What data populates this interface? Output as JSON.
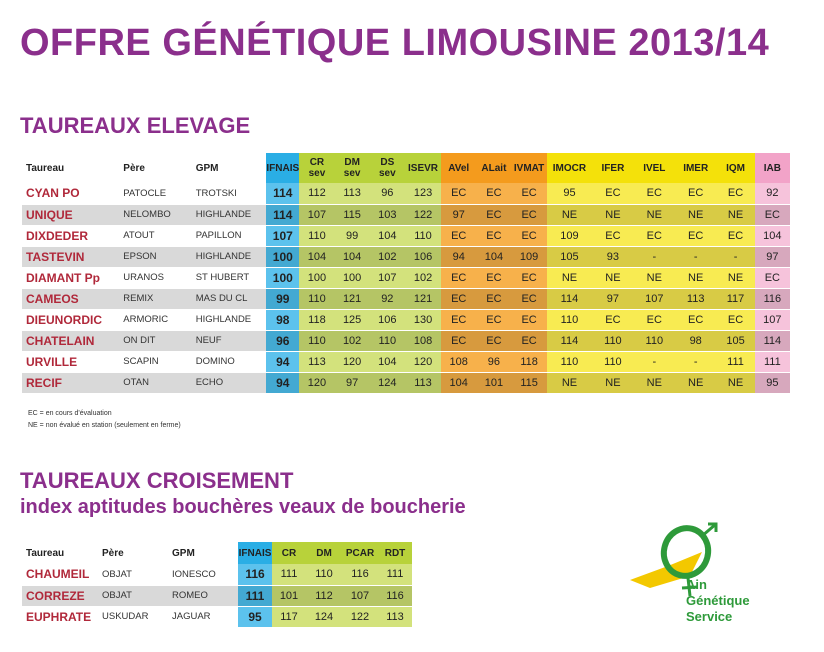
{
  "title": "OFFRE GÉNÉTIQUE LIMOUSINE 2013/14",
  "elevage": {
    "heading": "TAUREAUX ELEVAGE",
    "headers": [
      "Taureau",
      "Père",
      "GPM",
      "IFNAIS",
      "CR sev",
      "DM sev",
      "DS sev",
      "ISEVR",
      "AVel",
      "ALait",
      "IVMAT",
      "IMOCR",
      "IFER",
      "IVEL",
      "IMER",
      "IQM",
      "IAB"
    ],
    "rows": [
      [
        "CYAN PO",
        "PATOCLE",
        "TROTSKI",
        "114",
        "112",
        "113",
        "96",
        "123",
        "EC",
        "EC",
        "EC",
        "95",
        "EC",
        "EC",
        "EC",
        "EC",
        "92"
      ],
      [
        "UNIQUE",
        "NELOMBO",
        "HIGHLANDE",
        "114",
        "107",
        "115",
        "103",
        "122",
        "97",
        "EC",
        "EC",
        "NE",
        "NE",
        "NE",
        "NE",
        "NE",
        "EC"
      ],
      [
        "DIXDEDER",
        "ATOUT",
        "PAPILLON",
        "107",
        "110",
        "99",
        "104",
        "110",
        "EC",
        "EC",
        "EC",
        "109",
        "EC",
        "EC",
        "EC",
        "EC",
        "104"
      ],
      [
        "TASTEVIN",
        "EPSON",
        "HIGHLANDE",
        "100",
        "104",
        "104",
        "102",
        "106",
        "94",
        "104",
        "109",
        "105",
        "93",
        "-",
        "-",
        "-",
        "97"
      ],
      [
        "DIAMANT Pp",
        "URANOS",
        "ST HUBERT",
        "100",
        "100",
        "100",
        "107",
        "102",
        "EC",
        "EC",
        "EC",
        "NE",
        "NE",
        "NE",
        "NE",
        "NE",
        "EC"
      ],
      [
        "CAMEOS",
        "REMIX",
        "MAS DU CL",
        "99",
        "110",
        "121",
        "92",
        "121",
        "EC",
        "EC",
        "EC",
        "114",
        "97",
        "107",
        "113",
        "117",
        "116"
      ],
      [
        "DIEUNORDIC",
        "ARMORIC",
        "HIGHLANDE",
        "98",
        "118",
        "125",
        "106",
        "130",
        "EC",
        "EC",
        "EC",
        "110",
        "EC",
        "EC",
        "EC",
        "EC",
        "107"
      ],
      [
        "CHATELAIN",
        "ON DIT",
        "NEUF",
        "96",
        "110",
        "102",
        "110",
        "108",
        "EC",
        "EC",
        "EC",
        "114",
        "110",
        "110",
        "98",
        "105",
        "114"
      ],
      [
        "URVILLE",
        "SCAPIN",
        "DOMINO",
        "94",
        "113",
        "120",
        "104",
        "120",
        "108",
        "96",
        "118",
        "110",
        "110",
        "-",
        "-",
        "111",
        "111"
      ],
      [
        "RECIF",
        "OTAN",
        "ECHO",
        "94",
        "120",
        "97",
        "124",
        "113",
        "104",
        "101",
        "115",
        "NE",
        "NE",
        "NE",
        "NE",
        "NE",
        "95"
      ]
    ],
    "notes": [
      "EC = en cours d'évaluation",
      "NE = non évalué en station (seulement en ferme)"
    ]
  },
  "croisement": {
    "heading": "TAUREAUX CROISEMENT",
    "subheading": "index aptitudes bouchères veaux de boucherie",
    "headers": [
      "Taureau",
      "Père",
      "GPM",
      "IFNAIS",
      "CR",
      "DM",
      "PCAR",
      "RDT"
    ],
    "rows": [
      [
        "CHAUMEIL",
        "OBJAT",
        "IONESCO",
        "116",
        "111",
        "110",
        "116",
        "111"
      ],
      [
        "CORREZE",
        "OBJAT",
        "ROMEO",
        "111",
        "101",
        "112",
        "107",
        "116"
      ],
      [
        "EUPHRATE",
        "USKUDAR",
        "JAGUAR",
        "95",
        "117",
        "124",
        "122",
        "113"
      ]
    ]
  },
  "logo": {
    "lines": [
      "Ain",
      "Génétique",
      "Service"
    ],
    "colors": {
      "green": "#2e9a3a",
      "yellow": "#f3c800"
    }
  }
}
